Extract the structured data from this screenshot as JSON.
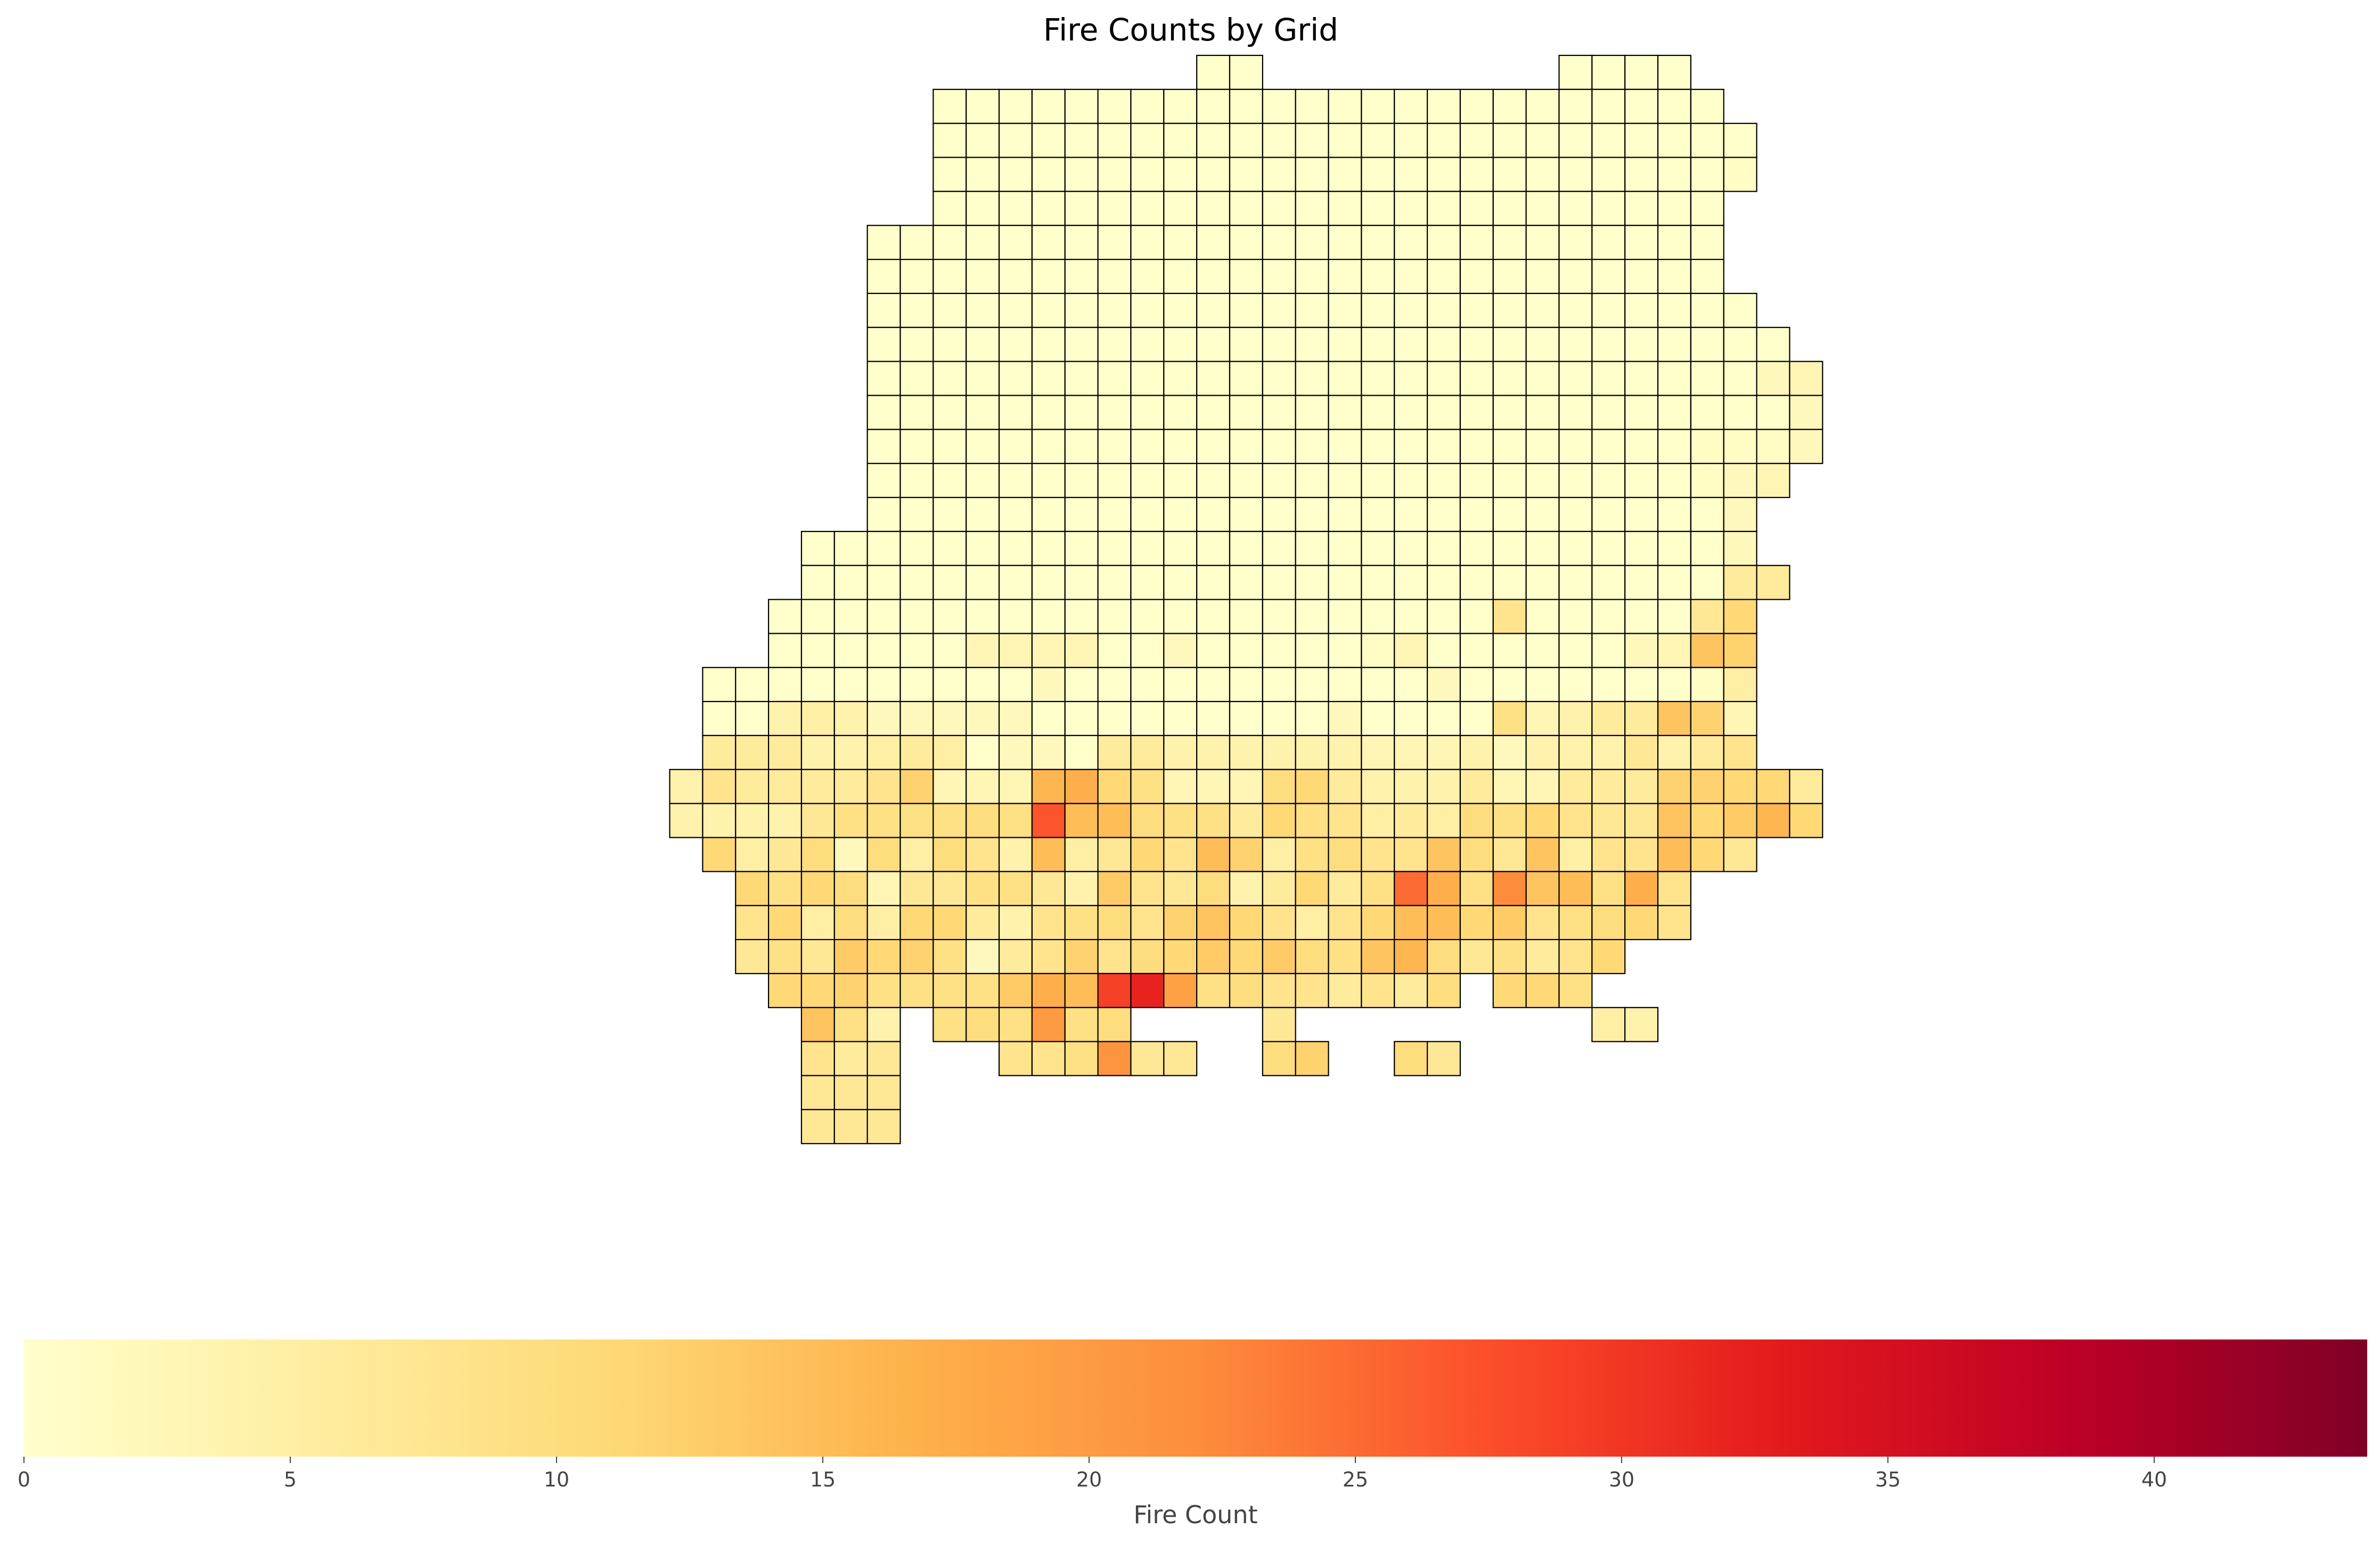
{
  "chart_data": {
    "type": "heatmap",
    "title": "Fire Counts by Grid",
    "colorbar": {
      "label": "Fire Count",
      "range": [
        0,
        44
      ],
      "ticks": [
        0,
        5,
        10,
        15,
        20,
        25,
        30,
        35,
        40
      ],
      "colormap": "YlOrRd",
      "stops": [
        "#ffffcc",
        "#ffeda0",
        "#fed976",
        "#feb24c",
        "#fd8d3c",
        "#fc4e2a",
        "#e31a1c",
        "#bd0026",
        "#800026"
      ],
      "orientation": "horizontal",
      "placement": "bottom"
    },
    "grid": {
      "cols": 38,
      "rows": 32,
      "row_strings": [
        "...................00.........0000....",
        "...........000000000000000000000000...",
        "...........0000000000000000000000000..",
        "...........0000000000000000000000001..",
        "...........000000000000000000000000...",
        ".........00000000000000000000000000...",
        ".........00000000000000000000000000...",
        ".........000000000000000000000000000..",
        ".........0000000000000000000000000000.",
        ".........00000000000000000000000000023",
        ".........00000000000000000000000000002",
        ".........00000000000000000000000001112",
        ".........0000000000000000000000000123.",
        ".........000000000000000000000000002..",
        ".......00000000000000000000000000002..",
        ".......000000000000000000000000000066.",
        "......00000000000000000000008000007b..",
        "......0000003333002000001300000023ec..",
        "....00000000002000000000002000000015..",
        "....00454222220000000002000093466ec3..",
        "....66644565022066444444333424447468..",
        "...4866668c333ghb9333ab6444633666ccbb6",
        "...444479999a9rffa996b98565a9b877ebdgb",
        "....b57a2a5a84f57b8fc59a88ea7e588fb7..",
        ".....b9ba3779974d87a46b69ph9mef9h8....",
        ".....8b5a5bb6489a8ceb858bffbd89ab8....",
        ".....797dbc9268c8abdbda9ega7968b......",
        "......bbc9999dhftwj9a88686a.bb9.......",
        ".......e94.9a9k9a....7.........54.....",
        ".......867...889l77..ac..a7...........",
        ".......777............................",
        ".......777............................"
      ]
    }
  }
}
